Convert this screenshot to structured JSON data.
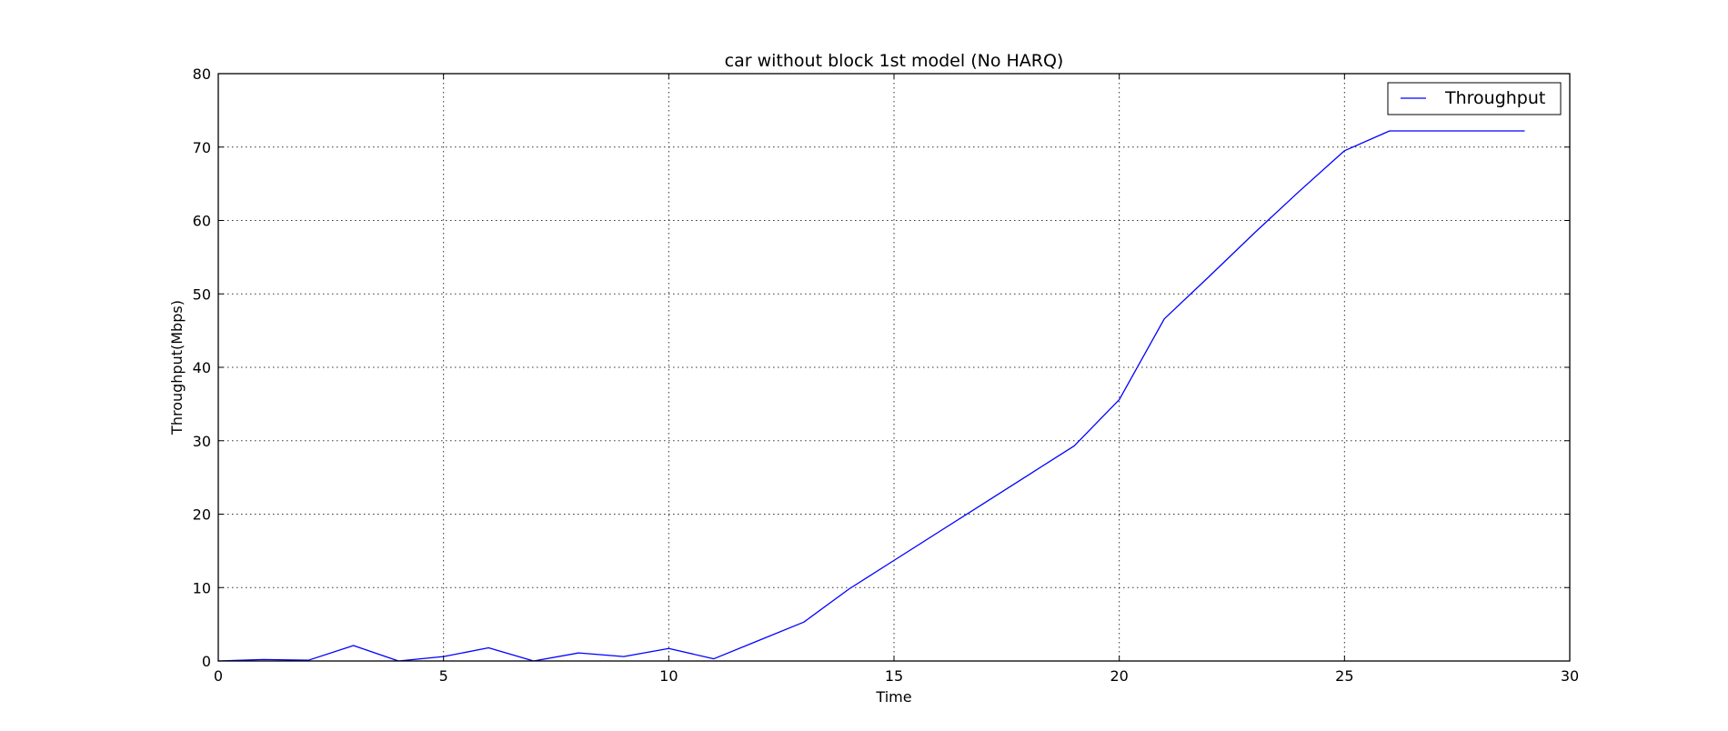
{
  "chart_data": {
    "type": "line",
    "title": "car without block 1st model (No HARQ)",
    "xlabel": "Time",
    "ylabel": "Throughput(Mbps)",
    "xlim": [
      0,
      30
    ],
    "ylim": [
      0,
      80
    ],
    "xticks": [
      "0",
      "5",
      "10",
      "15",
      "20",
      "25",
      "30"
    ],
    "yticks": [
      "0",
      "10",
      "20",
      "30",
      "40",
      "50",
      "60",
      "70",
      "80"
    ],
    "grid": true,
    "legend_position": "top-right",
    "series": [
      {
        "name": "Throughput",
        "color": "#0000ff",
        "x": [
          0,
          1,
          2,
          3,
          4,
          5,
          6,
          7,
          8,
          9,
          10,
          11,
          12,
          13,
          14,
          15,
          16,
          17,
          18,
          19,
          20,
          21,
          22,
          23,
          24,
          25,
          26,
          27,
          28,
          29
        ],
        "y": [
          0.0,
          0.2,
          0.1,
          2.1,
          0.0,
          0.6,
          1.8,
          0.0,
          1.1,
          0.6,
          1.7,
          0.3,
          2.8,
          5.3,
          9.8,
          13.7,
          17.6,
          21.5,
          25.4,
          29.3,
          35.6,
          46.6,
          52.4,
          58.3,
          64.0,
          69.5,
          72.2,
          72.2,
          72.2,
          72.2
        ]
      }
    ]
  }
}
